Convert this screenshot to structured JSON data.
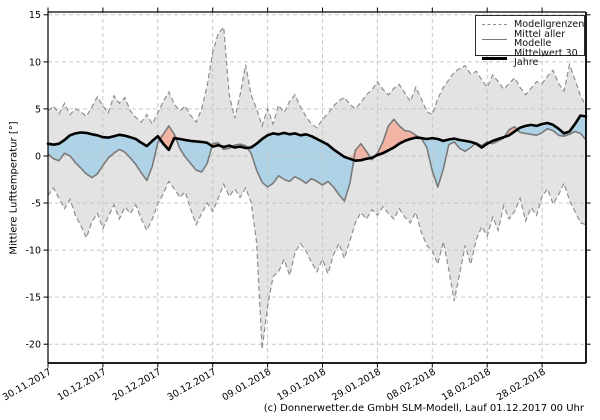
{
  "figure": {
    "caption": "(c) Donnerwetter.de GmbH SLM-Modell, Lauf 01.12.2017 00 Uhr"
  },
  "chart_data": {
    "type": "line",
    "title": "",
    "ylabel": "Mittlere Lufttemperatur [°]",
    "xlabel": "",
    "ylim": [
      -22,
      15.3
    ],
    "yticks": [
      15,
      10,
      5,
      0,
      -5,
      -10,
      -15,
      -20
    ],
    "x": {
      "unit": "day",
      "range": [
        0,
        98
      ],
      "day0_label": "30.11.2017"
    },
    "xticks": {
      "days": [
        0,
        10,
        20,
        30,
        40,
        50,
        60,
        70,
        80,
        90
      ],
      "labels": [
        "30.11.2017",
        "10.12.2017",
        "20.12.2017",
        "30.12.2017",
        "09.01.2018",
        "19.01.2018",
        "29.01.2018",
        "08.02.2018",
        "18.02.2018",
        "28.02.2018"
      ]
    },
    "grid": true,
    "grid_style": "dashed",
    "legend": {
      "position": "upper right",
      "entries": [
        "Modellgrenzen",
        "Mittel aller Modelle",
        "Mittelwert 30 Jahre"
      ]
    },
    "colors": {
      "envelope_fill": "#e3e3e3",
      "envelope_edge": "#8f8f8f",
      "below_fill": "#aed3e6",
      "above_fill": "#f1b4a5",
      "model_mean_line": "#7a7a7a",
      "mean30_line": "#000000",
      "grid": "#c6c6c6",
      "spine": "#000000"
    },
    "series": [
      {
        "name": "Modellgrenzen (obere Grenze)",
        "role": "upper",
        "values": [
          4.8,
          5.3,
          4.5,
          5.6,
          4.4,
          5.0,
          4.7,
          4.2,
          5.2,
          6.3,
          5.3,
          4.6,
          6.4,
          5.6,
          6.2,
          4.8,
          4.1,
          3.6,
          4.4,
          3.4,
          4.6,
          5.8,
          6.8,
          5.5,
          4.8,
          5.3,
          4.3,
          3.6,
          5.0,
          7.5,
          11.0,
          13.0,
          13.7,
          6.5,
          4.0,
          6.5,
          9.7,
          6.5,
          5.0,
          3.2,
          5.0,
          3.4,
          5.4,
          4.6,
          5.8,
          6.5,
          5.2,
          4.2,
          3.4,
          3.0,
          3.9,
          4.5,
          5.3,
          5.9,
          6.2,
          5.5,
          5.0,
          5.7,
          6.5,
          7.0,
          7.9,
          7.1,
          6.5,
          7.2,
          7.6,
          6.7,
          5.8,
          7.3,
          6.1,
          4.7,
          4.4,
          6.1,
          7.3,
          8.1,
          8.9,
          9.3,
          9.6,
          8.7,
          9.0,
          8.1,
          7.3,
          8.6,
          7.9,
          7.1,
          7.7,
          8.3,
          7.3,
          6.5,
          7.2,
          7.9,
          7.7,
          8.5,
          9.1,
          7.7,
          6.9,
          9.7,
          8.1,
          6.4,
          5.3
        ]
      },
      {
        "name": "Modellgrenzen (untere Grenze)",
        "role": "lower",
        "values": [
          -4.2,
          -3.4,
          -4.5,
          -5.6,
          -4.6,
          -6.3,
          -7.4,
          -8.7,
          -7.0,
          -6.1,
          -7.7,
          -6.4,
          -5.2,
          -6.7,
          -5.4,
          -6.1,
          -5.2,
          -6.7,
          -7.9,
          -6.7,
          -5.1,
          -4.0,
          -2.7,
          -3.5,
          -4.4,
          -3.8,
          -5.7,
          -7.3,
          -6.1,
          -5.0,
          -5.9,
          -4.5,
          -3.0,
          -4.3,
          -3.5,
          -4.4,
          -3.4,
          -4.9,
          -9.2,
          -20.5,
          -16.0,
          -12.8,
          -12.3,
          -11.0,
          -12.7,
          -10.3,
          -9.3,
          -10.1,
          -11.3,
          -12.3,
          -11.0,
          -12.5,
          -10.5,
          -9.3,
          -10.9,
          -9.0,
          -7.1,
          -6.0,
          -6.7,
          -5.7,
          -6.3,
          -5.4,
          -6.1,
          -6.7,
          -5.6,
          -6.5,
          -7.1,
          -6.0,
          -8.1,
          -9.5,
          -10.1,
          -11.5,
          -9.1,
          -12.1,
          -15.4,
          -12.5,
          -9.5,
          -11.5,
          -8.9,
          -7.5,
          -8.5,
          -6.5,
          -7.9,
          -5.3,
          -6.7,
          -5.9,
          -4.5,
          -6.9,
          -5.5,
          -6.3,
          -4.3,
          -3.5,
          -5.1,
          -4.1,
          -2.9,
          -4.7,
          -5.9,
          -7.1,
          -7.3
        ]
      },
      {
        "name": "Mittel aller Modelle",
        "role": "model_mean",
        "values": [
          0.2,
          -0.3,
          -0.5,
          0.3,
          0.0,
          -0.7,
          -1.3,
          -1.9,
          -2.3,
          -1.9,
          -1.0,
          -0.2,
          0.3,
          0.7,
          0.4,
          -0.2,
          -0.9,
          -1.8,
          -2.6,
          -1.1,
          1.4,
          2.3,
          3.2,
          2.3,
          0.8,
          -0.1,
          -0.8,
          -1.5,
          -1.7,
          -0.8,
          1.3,
          1.4,
          0.7,
          0.8,
          1.15,
          1.25,
          1.1,
          0.3,
          -1.5,
          -2.8,
          -3.3,
          -2.9,
          -2.1,
          -2.5,
          -2.7,
          -2.2,
          -2.5,
          -2.9,
          -2.4,
          -2.7,
          -3.1,
          -2.7,
          -3.3,
          -4.1,
          -4.8,
          -2.9,
          0.6,
          1.3,
          0.5,
          -0.4,
          0.3,
          1.5,
          3.2,
          3.9,
          3.2,
          2.7,
          2.6,
          2.2,
          1.9,
          0.9,
          -1.6,
          -3.3,
          -1.4,
          1.2,
          1.5,
          0.8,
          0.5,
          0.9,
          1.4,
          1.1,
          1.5,
          1.3,
          1.6,
          1.9,
          2.8,
          3.1,
          2.5,
          2.4,
          2.3,
          2.2,
          2.5,
          2.9,
          2.7,
          2.2,
          2.1,
          2.3,
          2.6,
          2.4,
          1.7
        ]
      },
      {
        "name": "Mittelwert 30 Jahre",
        "role": "mean30",
        "values": [
          1.3,
          1.2,
          1.3,
          1.7,
          2.2,
          2.4,
          2.5,
          2.45,
          2.3,
          2.2,
          2.0,
          1.95,
          2.1,
          2.25,
          2.15,
          2.0,
          1.8,
          1.4,
          1.05,
          1.6,
          2.1,
          1.3,
          0.65,
          1.9,
          1.8,
          1.7,
          1.6,
          1.55,
          1.5,
          1.4,
          1.0,
          1.15,
          0.95,
          1.1,
          0.9,
          1.0,
          0.85,
          0.9,
          1.3,
          1.8,
          2.2,
          2.4,
          2.3,
          2.45,
          2.3,
          2.4,
          2.2,
          2.3,
          2.1,
          1.8,
          1.5,
          1.2,
          0.7,
          0.3,
          -0.1,
          -0.3,
          -0.5,
          -0.45,
          -0.3,
          -0.2,
          0.1,
          0.3,
          0.6,
          0.9,
          1.3,
          1.6,
          1.8,
          1.95,
          1.9,
          1.8,
          1.9,
          1.8,
          1.6,
          1.75,
          1.85,
          1.7,
          1.6,
          1.5,
          1.3,
          0.9,
          1.3,
          1.6,
          1.8,
          2.0,
          2.2,
          2.6,
          3.0,
          3.2,
          3.3,
          3.2,
          3.4,
          3.5,
          3.3,
          2.9,
          2.4,
          2.6,
          3.4,
          4.3,
          4.2
        ]
      }
    ]
  }
}
